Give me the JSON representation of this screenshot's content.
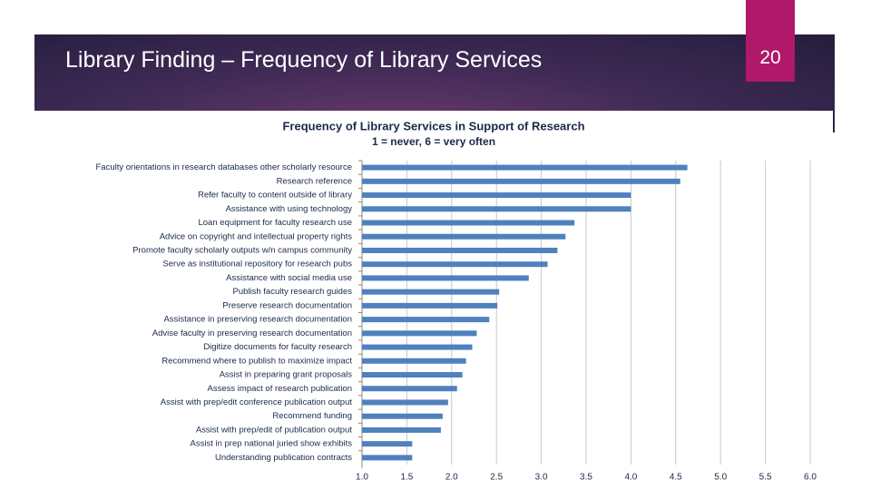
{
  "slide": {
    "title": "Library Finding – Frequency of Library Services",
    "page_number": "20"
  },
  "chart_data": {
    "type": "hbar",
    "title": "Frequency of Library Services in Support of Research",
    "subtitle": "1 = never, 6 = very often",
    "categories": [
      "Faculty orientations in research databases other scholarly resource",
      "Research reference",
      "Refer faculty to content outside of library",
      "Assistance with using technology",
      "Loan equipment for faculty research use",
      "Advice on copyright and intellectual property rights",
      "Promote faculty scholarly outputs w/n campus community",
      "Serve as institutional repository for research pubs",
      "Assistance with social media use",
      "Publish faculty research guides",
      "Preserve research documentation",
      "Assistance in preserving research documentation",
      "Advise faculty in preserving research documentation",
      "Digitize documents for faculty research",
      "Recommend where to publish to maximize impact",
      "Assist in preparing grant proposals",
      "Assess impact of research publication",
      "Assist with prep/edit conference publication output",
      "Recommend funding",
      "Assist with prep/edit of publication output",
      "Assist in prep national juried show exhibits",
      "Understanding publication contracts"
    ],
    "values": [
      4.63,
      4.55,
      4.0,
      4.0,
      3.37,
      3.27,
      3.18,
      3.07,
      2.86,
      2.53,
      2.51,
      2.42,
      2.28,
      2.23,
      2.16,
      2.12,
      2.06,
      1.96,
      1.9,
      1.88,
      1.56,
      1.56
    ],
    "color": "#4f81bd",
    "xlim": [
      1,
      6
    ],
    "xticks": [
      {
        "value": 1,
        "label": "1.0"
      },
      {
        "value": 1.5,
        "label": "1.5"
      },
      {
        "value": 2,
        "label": "2.0"
      },
      {
        "value": 2.5,
        "label": "2.5"
      },
      {
        "value": 3,
        "label": "3.0"
      },
      {
        "value": 3.5,
        "label": "3.5"
      },
      {
        "value": 4,
        "label": "4.0"
      },
      {
        "value": 4.5,
        "label": "4.5"
      },
      {
        "value": 5,
        "label": "5.0"
      },
      {
        "value": 5.5,
        "label": "5.5"
      },
      {
        "value": 6,
        "label": "6.0"
      }
    ],
    "grid": true
  }
}
